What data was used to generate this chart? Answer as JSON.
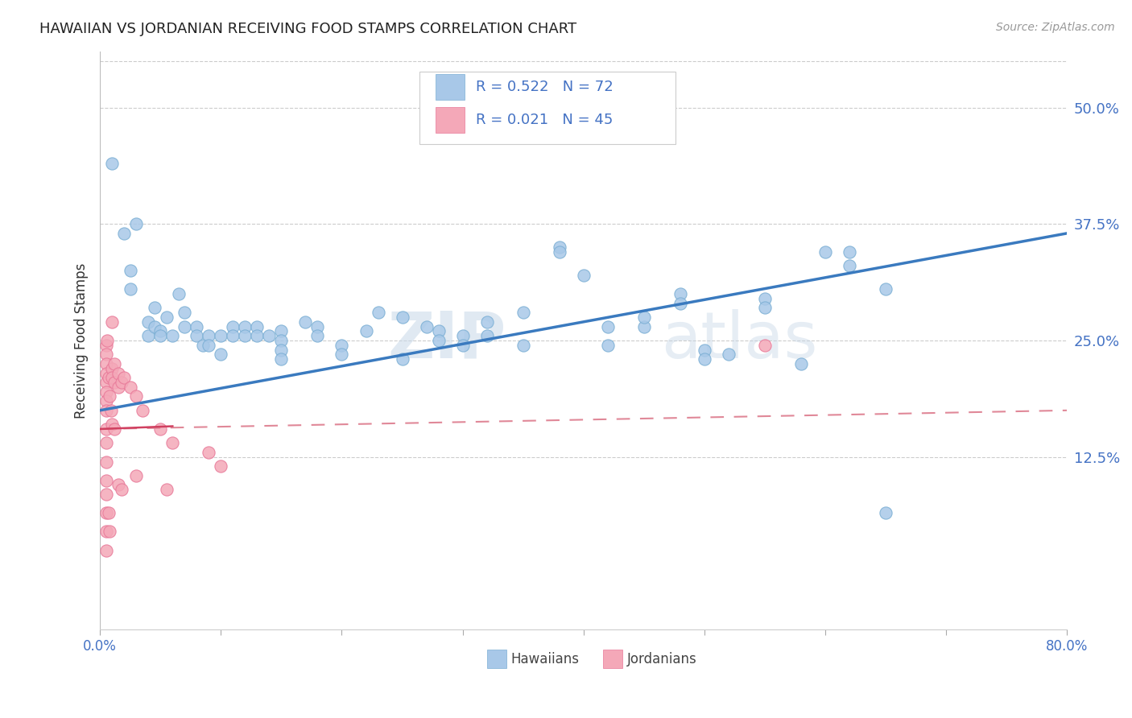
{
  "title": "HAWAIIAN VS JORDANIAN RECEIVING FOOD STAMPS CORRELATION CHART",
  "source": "Source: ZipAtlas.com",
  "ylabel": "Receiving Food Stamps",
  "ytick_labels": [
    "50.0%",
    "37.5%",
    "25.0%",
    "12.5%"
  ],
  "ytick_values": [
    0.5,
    0.375,
    0.25,
    0.125
  ],
  "xlim": [
    0.0,
    0.8
  ],
  "ylim": [
    -0.06,
    0.56
  ],
  "background_color": "#ffffff",
  "watermark_zip": "ZIP",
  "watermark_atlas": "atlas",
  "legend_blue_R": "R = 0.522",
  "legend_blue_N": "N = 72",
  "legend_pink_R": "R = 0.021",
  "legend_pink_N": "N = 45",
  "blue_color": "#a8c8e8",
  "pink_color": "#f4a8b8",
  "blue_edge_color": "#7bafd4",
  "pink_edge_color": "#e87898",
  "line_blue_color": "#3a7abf",
  "line_pink_color_solid": "#d04060",
  "line_pink_color_dash": "#e08898",
  "text_blue": "#4472c4",
  "text_dark": "#333333",
  "blue_scatter": [
    [
      0.01,
      0.44
    ],
    [
      0.02,
      0.365
    ],
    [
      0.025,
      0.325
    ],
    [
      0.025,
      0.305
    ],
    [
      0.03,
      0.375
    ],
    [
      0.04,
      0.27
    ],
    [
      0.04,
      0.255
    ],
    [
      0.045,
      0.285
    ],
    [
      0.045,
      0.265
    ],
    [
      0.05,
      0.26
    ],
    [
      0.05,
      0.255
    ],
    [
      0.055,
      0.275
    ],
    [
      0.06,
      0.255
    ],
    [
      0.07,
      0.265
    ],
    [
      0.065,
      0.3
    ],
    [
      0.07,
      0.28
    ],
    [
      0.08,
      0.265
    ],
    [
      0.08,
      0.255
    ],
    [
      0.085,
      0.245
    ],
    [
      0.09,
      0.255
    ],
    [
      0.09,
      0.245
    ],
    [
      0.1,
      0.235
    ],
    [
      0.1,
      0.255
    ],
    [
      0.11,
      0.265
    ],
    [
      0.11,
      0.255
    ],
    [
      0.12,
      0.265
    ],
    [
      0.12,
      0.255
    ],
    [
      0.13,
      0.265
    ],
    [
      0.13,
      0.255
    ],
    [
      0.14,
      0.255
    ],
    [
      0.15,
      0.26
    ],
    [
      0.15,
      0.25
    ],
    [
      0.15,
      0.24
    ],
    [
      0.15,
      0.23
    ],
    [
      0.17,
      0.27
    ],
    [
      0.18,
      0.265
    ],
    [
      0.18,
      0.255
    ],
    [
      0.2,
      0.245
    ],
    [
      0.2,
      0.235
    ],
    [
      0.22,
      0.26
    ],
    [
      0.23,
      0.28
    ],
    [
      0.25,
      0.275
    ],
    [
      0.25,
      0.23
    ],
    [
      0.27,
      0.265
    ],
    [
      0.28,
      0.26
    ],
    [
      0.28,
      0.25
    ],
    [
      0.3,
      0.255
    ],
    [
      0.3,
      0.245
    ],
    [
      0.32,
      0.255
    ],
    [
      0.32,
      0.27
    ],
    [
      0.35,
      0.245
    ],
    [
      0.35,
      0.28
    ],
    [
      0.38,
      0.35
    ],
    [
      0.38,
      0.345
    ],
    [
      0.4,
      0.32
    ],
    [
      0.42,
      0.245
    ],
    [
      0.42,
      0.265
    ],
    [
      0.45,
      0.265
    ],
    [
      0.45,
      0.275
    ],
    [
      0.48,
      0.3
    ],
    [
      0.48,
      0.29
    ],
    [
      0.5,
      0.24
    ],
    [
      0.5,
      0.23
    ],
    [
      0.52,
      0.235
    ],
    [
      0.55,
      0.295
    ],
    [
      0.55,
      0.285
    ],
    [
      0.58,
      0.225
    ],
    [
      0.6,
      0.345
    ],
    [
      0.62,
      0.345
    ],
    [
      0.62,
      0.33
    ],
    [
      0.65,
      0.305
    ],
    [
      0.65,
      0.065
    ]
  ],
  "pink_scatter": [
    [
      0.005,
      0.245
    ],
    [
      0.005,
      0.235
    ],
    [
      0.005,
      0.225
    ],
    [
      0.005,
      0.215
    ],
    [
      0.005,
      0.205
    ],
    [
      0.005,
      0.195
    ],
    [
      0.005,
      0.185
    ],
    [
      0.005,
      0.175
    ],
    [
      0.005,
      0.155
    ],
    [
      0.005,
      0.14
    ],
    [
      0.005,
      0.12
    ],
    [
      0.005,
      0.1
    ],
    [
      0.005,
      0.085
    ],
    [
      0.005,
      0.065
    ],
    [
      0.005,
      0.045
    ],
    [
      0.005,
      0.025
    ],
    [
      0.006,
      0.25
    ],
    [
      0.007,
      0.21
    ],
    [
      0.007,
      0.065
    ],
    [
      0.008,
      0.19
    ],
    [
      0.008,
      0.045
    ],
    [
      0.009,
      0.175
    ],
    [
      0.01,
      0.27
    ],
    [
      0.01,
      0.22
    ],
    [
      0.01,
      0.21
    ],
    [
      0.01,
      0.16
    ],
    [
      0.012,
      0.225
    ],
    [
      0.012,
      0.205
    ],
    [
      0.012,
      0.155
    ],
    [
      0.015,
      0.215
    ],
    [
      0.015,
      0.2
    ],
    [
      0.015,
      0.095
    ],
    [
      0.018,
      0.205
    ],
    [
      0.018,
      0.09
    ],
    [
      0.02,
      0.21
    ],
    [
      0.025,
      0.2
    ],
    [
      0.03,
      0.19
    ],
    [
      0.03,
      0.105
    ],
    [
      0.035,
      0.175
    ],
    [
      0.05,
      0.155
    ],
    [
      0.055,
      0.09
    ],
    [
      0.06,
      0.14
    ],
    [
      0.09,
      0.13
    ],
    [
      0.1,
      0.115
    ],
    [
      0.55,
      0.245
    ]
  ],
  "blue_trendline": [
    [
      0.0,
      0.175
    ],
    [
      0.8,
      0.365
    ]
  ],
  "pink_trendline_solid": [
    [
      0.0,
      0.155
    ],
    [
      0.06,
      0.158
    ]
  ],
  "pink_trendline_dash": [
    [
      0.0,
      0.155
    ],
    [
      0.8,
      0.175
    ]
  ]
}
